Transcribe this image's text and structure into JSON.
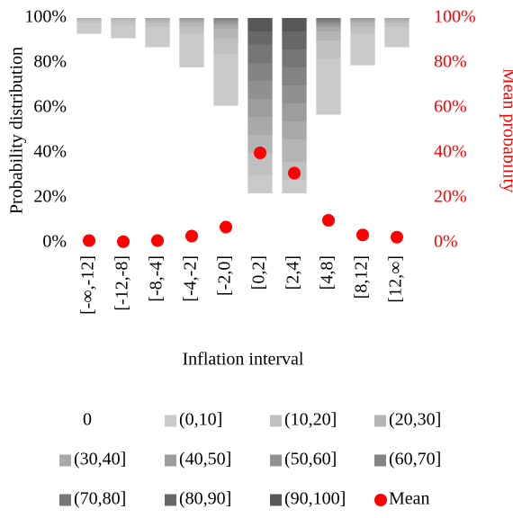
{
  "chart_data": {
    "type": "bar",
    "stacked": true,
    "x_label": "Inflation interval",
    "y_label": "Probability distribution",
    "y2_label": "Mean probability",
    "categories": [
      "[-∞,-12]",
      "[-12,-8]",
      "[-8,-4]",
      "[-4,-2]",
      "[-2,0]",
      "[0,2]",
      "[2,4]",
      "[4,8]",
      "[8,12]",
      "[12,∞]"
    ],
    "ylim": [
      0,
      100
    ],
    "yticks": [
      {
        "value": 0,
        "label": "0%"
      },
      {
        "value": 20,
        "label": "20%"
      },
      {
        "value": 40,
        "label": "40%"
      },
      {
        "value": 60,
        "label": "60%"
      },
      {
        "value": 80,
        "label": "80%"
      },
      {
        "value": 100,
        "label": "100%"
      }
    ],
    "y2lim": [
      0,
      100
    ],
    "y2ticks": [
      {
        "value": 0,
        "label": "0%"
      },
      {
        "value": 20,
        "label": "20%"
      },
      {
        "value": 40,
        "label": "40%"
      },
      {
        "value": 60,
        "label": "60%"
      },
      {
        "value": 80,
        "label": "80%"
      },
      {
        "value": 100,
        "label": "100%"
      }
    ],
    "y2color": "#ff0000",
    "series": [
      {
        "name": "0",
        "color": "#ffffff",
        "values": [
          93,
          91,
          87,
          78,
          61,
          22,
          22,
          57,
          79,
          87
        ]
      },
      {
        "name": "(0,10]",
        "color": "#cacaca",
        "values": [
          5,
          6,
          9,
          15,
          23,
          8,
          6,
          25,
          14,
          9
        ]
      },
      {
        "name": "(10,20]",
        "color": "#c0c0c0",
        "values": [
          1,
          2,
          2,
          3,
          7,
          10,
          8,
          8,
          3,
          2
        ]
      },
      {
        "name": "(20,30]",
        "color": "#b5b5b5",
        "values": [
          1,
          1,
          1,
          2,
          4,
          8,
          10,
          4,
          2,
          1
        ]
      },
      {
        "name": "(30,40]",
        "color": "#a9a9a9",
        "values": [
          0,
          0,
          1,
          1,
          2,
          8,
          8,
          2,
          1,
          1
        ]
      },
      {
        "name": "(40,50]",
        "color": "#9d9d9d",
        "values": [
          0,
          0,
          0,
          1,
          1,
          8,
          8,
          1,
          1,
          0
        ]
      },
      {
        "name": "(50,60]",
        "color": "#909090",
        "values": [
          0,
          0,
          0,
          0,
          1,
          8,
          8,
          1,
          0,
          0
        ]
      },
      {
        "name": "(60,70]",
        "color": "#838383",
        "values": [
          0,
          0,
          0,
          0,
          1,
          8,
          8,
          1,
          0,
          0
        ]
      },
      {
        "name": "(70,80]",
        "color": "#767676",
        "values": [
          0,
          0,
          0,
          0,
          0,
          8,
          8,
          1,
          0,
          0
        ]
      },
      {
        "name": "(80,90]",
        "color": "#686868",
        "values": [
          0,
          0,
          0,
          0,
          0,
          6,
          8,
          0,
          0,
          0
        ]
      },
      {
        "name": "(90,100]",
        "color": "#585858",
        "values": [
          0,
          0,
          0,
          0,
          0,
          6,
          6,
          0,
          0,
          0
        ]
      },
      {
        "name": "Mean",
        "type": "scatter",
        "axis": "y2",
        "color": "#ff0000",
        "values": [
          1,
          0.5,
          1,
          3,
          7,
          40,
          31,
          10,
          3.5,
          2.5
        ]
      }
    ]
  }
}
